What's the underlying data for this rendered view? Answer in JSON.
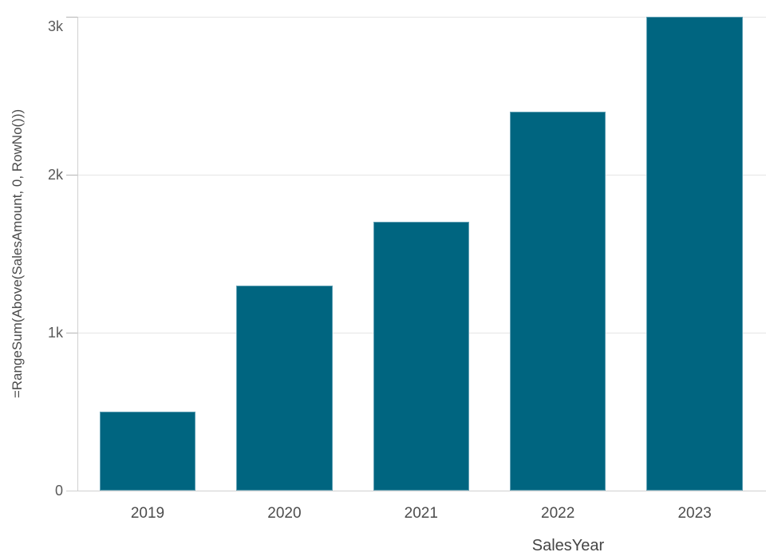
{
  "chart_data": {
    "type": "bar",
    "title": "",
    "categories": [
      "2019",
      "2020",
      "2021",
      "2022",
      "2023"
    ],
    "values": [
      500,
      1300,
      1700,
      2400,
      3000
    ],
    "series_name": "=RangeSum(Above(SalesAmount, 0, RowNo()))",
    "xlabel": "SalesYear",
    "ylabel": "=RangeSum(Above(SalesAmount, 0, RowNo()))",
    "ylim": [
      0,
      3000
    ],
    "yticks": [
      {
        "value": 0,
        "label": "0"
      },
      {
        "value": 1000,
        "label": "1k"
      },
      {
        "value": 2000,
        "label": "2k"
      },
      {
        "value": 3000,
        "label": "3k"
      }
    ],
    "grid": true,
    "legend_visible": false
  },
  "colors": {
    "bar": "#006580",
    "gridline": "#e5e5e5",
    "axis_line": "#d0d0d0",
    "tick_mark": "#b5b5b5",
    "ytick_label": "#595959",
    "xtick_label": "#4d4d4d",
    "axis_title": "#4a4a4a",
    "background": "#ffffff"
  }
}
